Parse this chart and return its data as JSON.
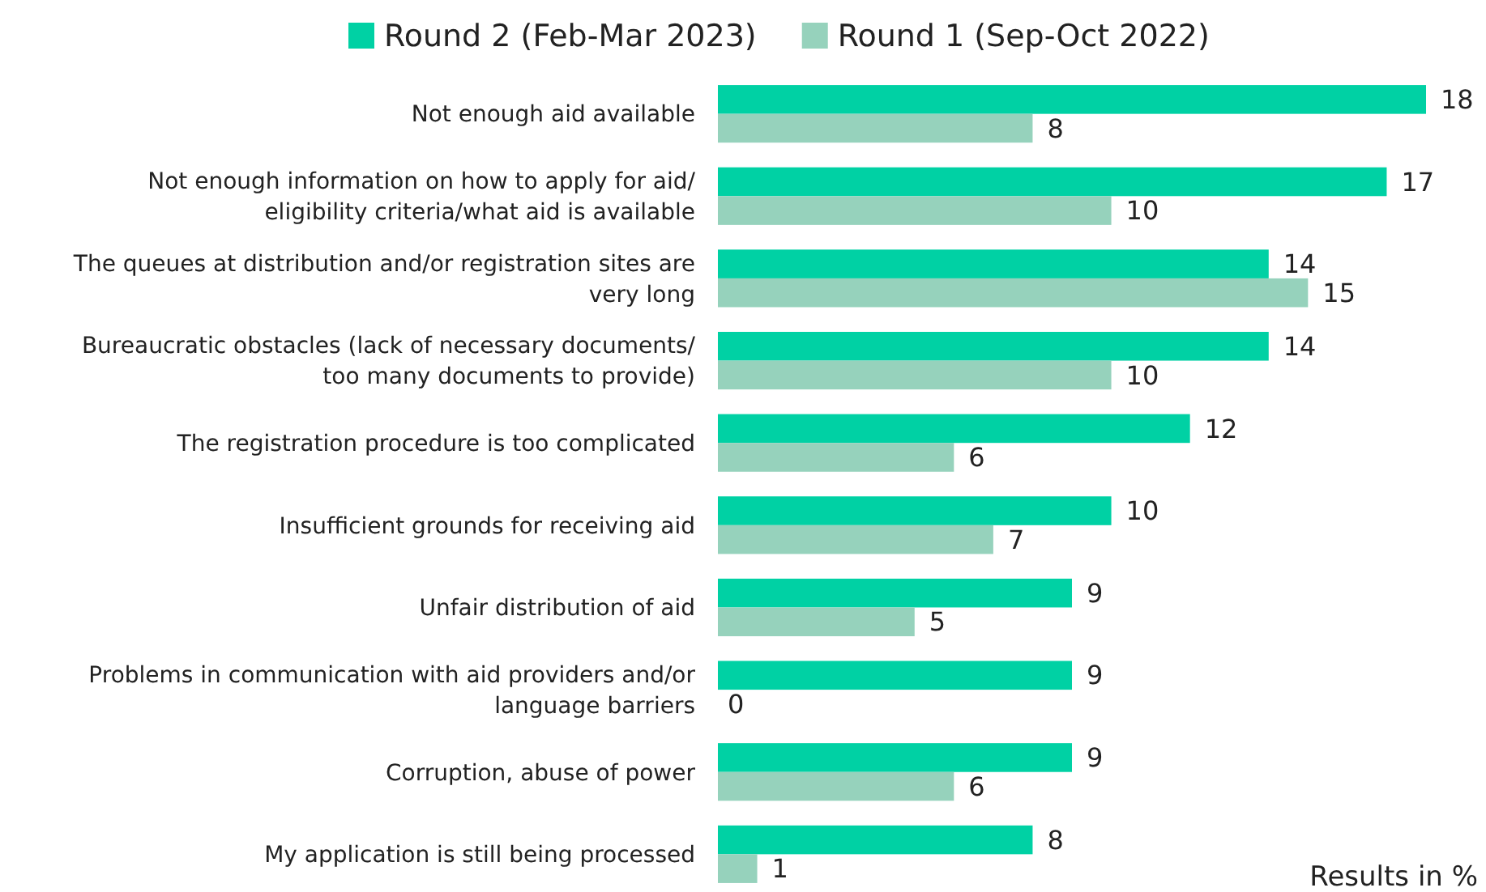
{
  "chart_data": {
    "type": "bar",
    "orientation": "horizontal",
    "data_labels": true,
    "legend": "top",
    "categories": [
      "Not enough aid available",
      "Not enough information on how to apply for aid/ eligibility criteria/what aid is available",
      "The queues at distribution and/or registration sites are very long",
      "Bureaucratic obstacles (lack of necessary documents/ too many documents to provide)",
      "The registration procedure is too complicated",
      "Insufficient grounds for receiving aid",
      "Unfair distribution of aid",
      "Problems in communication with aid providers and/or language barriers",
      "Corruption, abuse of power",
      "My application is still being processed"
    ],
    "series": [
      {
        "name": "Round 2 (Feb-Mar 2023)",
        "color": "#00d1a4",
        "values": [
          18,
          17,
          14,
          14,
          12,
          10,
          9,
          9,
          9,
          8
        ]
      },
      {
        "name": "Round 1 (Sep-Oct 2022)",
        "color": "#96d2bc",
        "values": [
          8,
          10,
          15,
          10,
          6,
          7,
          5,
          0,
          6,
          1
        ]
      }
    ],
    "annotations": [
      "Results in %"
    ]
  }
}
